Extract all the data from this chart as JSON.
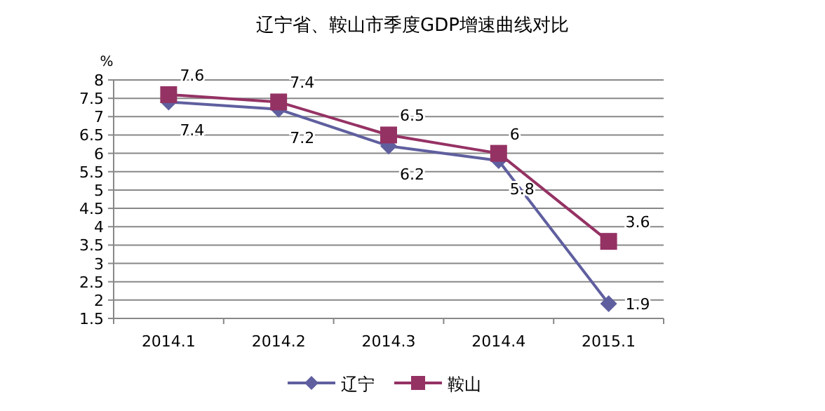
{
  "chart_data": {
    "type": "line",
    "title": "辽宁省、鞍山市季度GDP增速曲线对比",
    "ylabel": "%",
    "categories": [
      "2014.1",
      "2014.2",
      "2014.3",
      "2014.4",
      "2015.1"
    ],
    "series": [
      {
        "name": "辽宁",
        "color": "#5f5f9f",
        "marker": "diamond",
        "values": [
          7.4,
          7.2,
          6.2,
          5.8,
          1.9
        ]
      },
      {
        "name": "鞍山",
        "color": "#953264",
        "marker": "square",
        "values": [
          7.6,
          7.4,
          6.5,
          6,
          3.6
        ]
      }
    ],
    "ylim": [
      1.5,
      8
    ],
    "yticks": [
      1.5,
      2,
      2.5,
      3,
      3.5,
      4,
      4.5,
      5,
      5.5,
      6,
      6.5,
      7,
      7.5,
      8
    ],
    "grid": "y",
    "legend": "bottom",
    "data_labels": true
  }
}
